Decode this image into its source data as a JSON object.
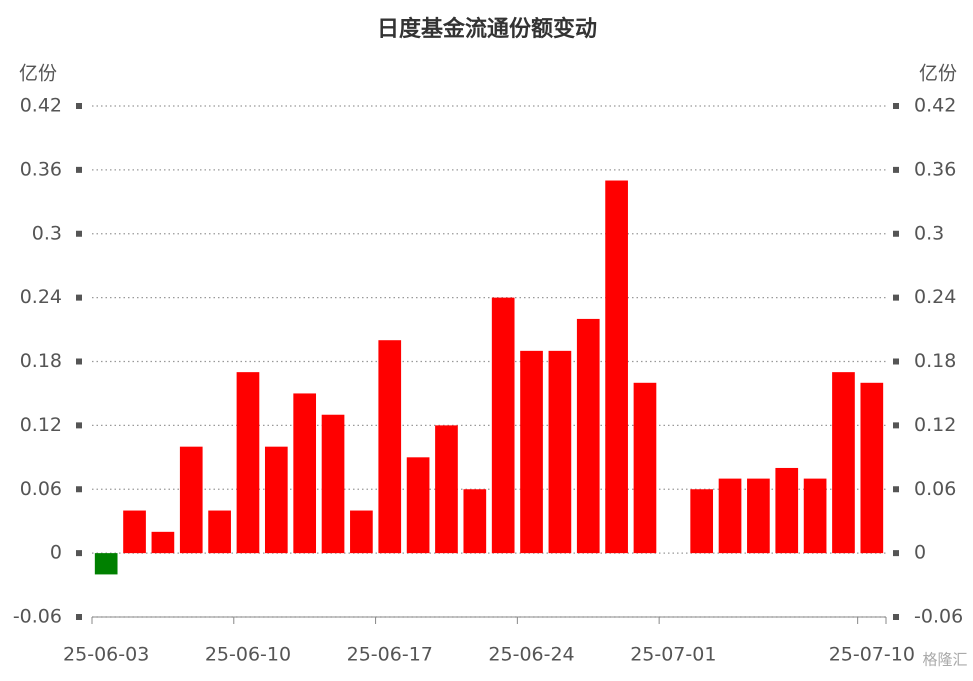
{
  "chart_data": {
    "type": "bar",
    "title": "日度基金流通份额变动",
    "y_label": "亿份",
    "y2_label": "亿份",
    "categories": [
      "25-06-03",
      null,
      null,
      null,
      null,
      "25-06-10",
      null,
      null,
      null,
      null,
      "25-06-17",
      null,
      null,
      null,
      null,
      "25-06-24",
      null,
      null,
      null,
      null,
      "25-07-01",
      null,
      null,
      null,
      null,
      null,
      null,
      "25-07-10"
    ],
    "values": [
      -0.02,
      0.04,
      0.02,
      0.1,
      0.04,
      0.17,
      0.1,
      0.15,
      0.13,
      0.04,
      0.2,
      0.09,
      0.12,
      0.06,
      0.24,
      0.19,
      0.19,
      0.22,
      0.35,
      0.16,
      null,
      0.06,
      0.07,
      0.07,
      0.08,
      0.07,
      0.17,
      0.16
    ],
    "positive_color": "#ff0000",
    "negative_color": "#008000",
    "ylim": [
      -0.06,
      0.42
    ],
    "yticks": [
      -0.06,
      0,
      0.06,
      0.12,
      0.18,
      0.24,
      0.3,
      0.36,
      0.42
    ],
    "y2lim": [
      -0.06,
      0.42
    ],
    "y2ticks": [
      -0.06,
      0,
      0.06,
      0.12,
      0.18,
      0.24,
      0.3,
      0.36,
      0.42
    ],
    "grid": true,
    "watermark": "格隆汇"
  }
}
